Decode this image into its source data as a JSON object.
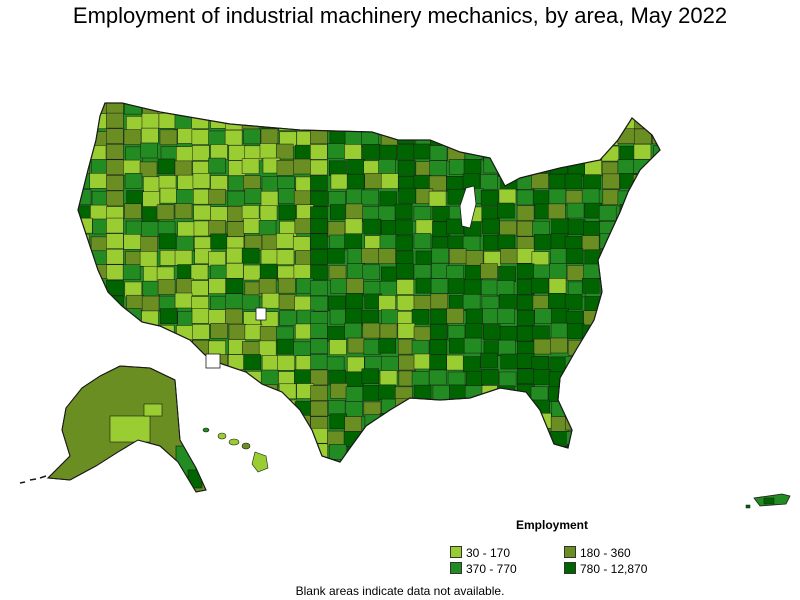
{
  "title": "Employment of industrial machinery mechanics, by area, May 2022",
  "legend": {
    "title": "Employment",
    "items": [
      {
        "label": "30 - 170",
        "color": "#9ACD32"
      },
      {
        "label": "180 - 360",
        "color": "#6B8E23"
      },
      {
        "label": "370 - 770",
        "color": "#228B22"
      },
      {
        "label": "780 - 12,870",
        "color": "#006400"
      }
    ]
  },
  "note": "Blank areas indicate data not available.",
  "colors": {
    "border": "#1a1a1a",
    "background": "#ffffff"
  }
}
